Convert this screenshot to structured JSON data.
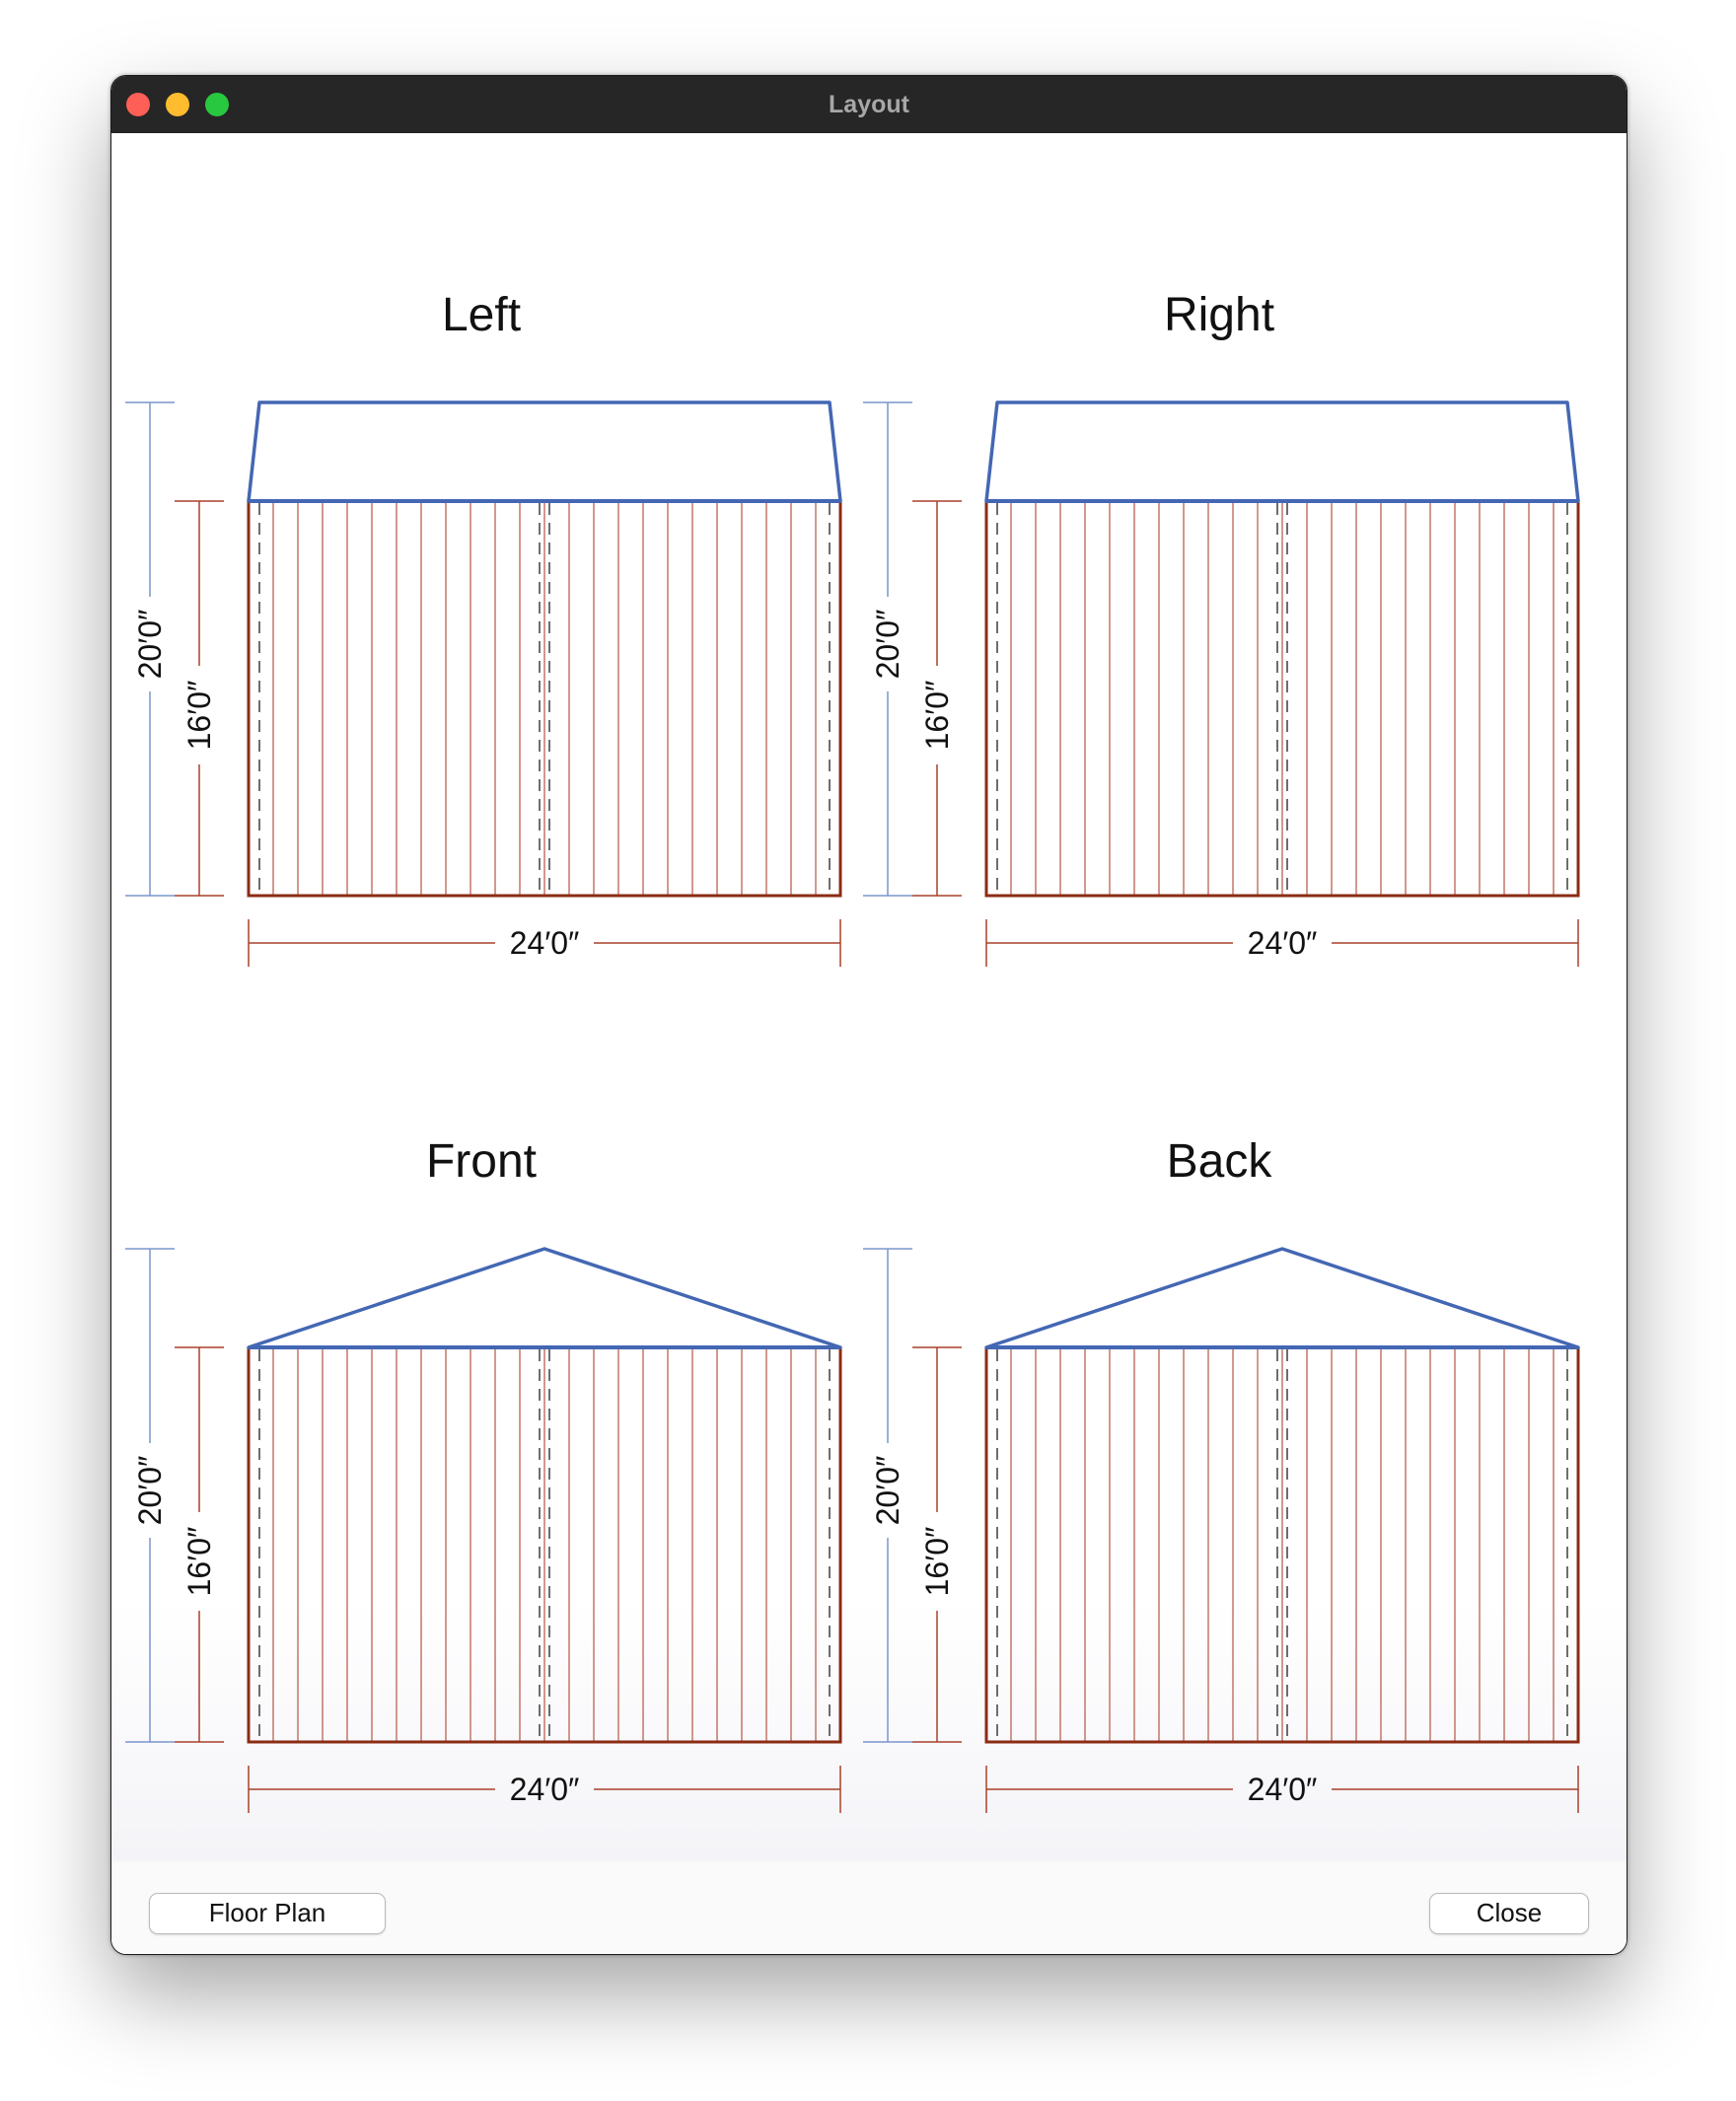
{
  "window": {
    "title": "Layout"
  },
  "panels": [
    {
      "name": "left",
      "title": "Left",
      "roof": "flat",
      "overall_height": "20′0″",
      "wall_height": "16′0″",
      "width": "24′0″"
    },
    {
      "name": "right",
      "title": "Right",
      "roof": "flat",
      "overall_height": "20′0″",
      "wall_height": "16′0″",
      "width": "24′0″"
    },
    {
      "name": "front",
      "title": "Front",
      "roof": "gable",
      "overall_height": "20′0″",
      "wall_height": "16′0″",
      "width": "24′0″"
    },
    {
      "name": "back",
      "title": "Back",
      "roof": "gable",
      "overall_height": "20′0″",
      "wall_height": "16′0″",
      "width": "24′0″"
    }
  ],
  "buttons": {
    "floor_plan": "Floor Plan",
    "close": "Close"
  },
  "colors": {
    "roof": "#4467b3",
    "wall": "#8b2c14",
    "panel_line": "#b55543",
    "overall_dim": "#7a95cc",
    "wall_dim": "#a8402a",
    "dashed": "#4a4a4a"
  }
}
